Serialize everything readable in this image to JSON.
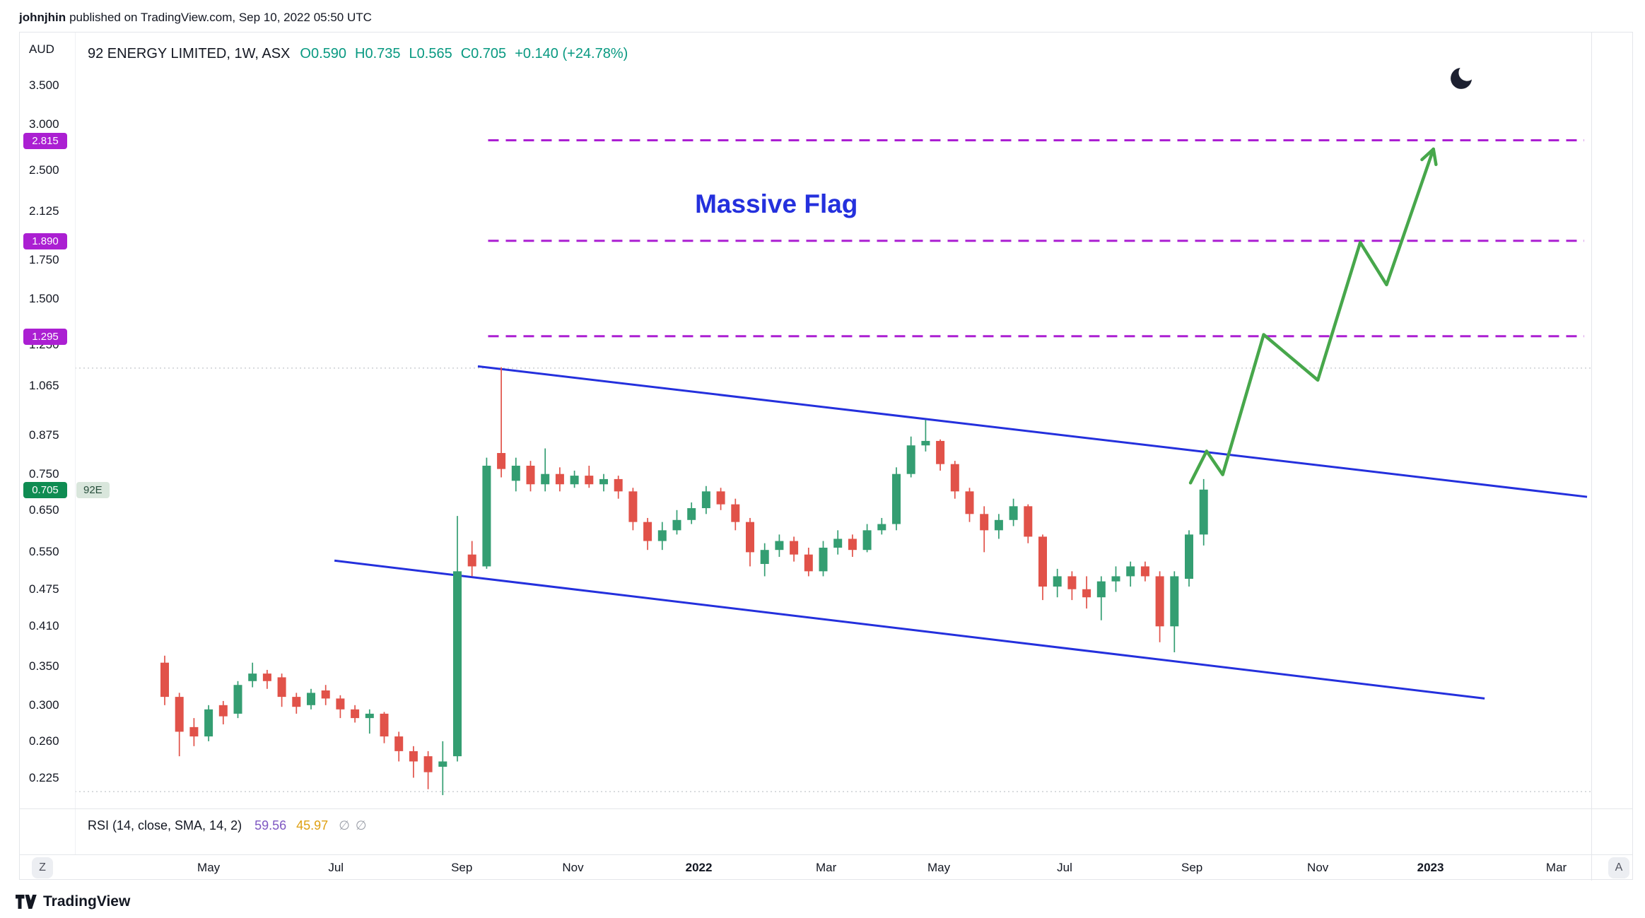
{
  "header": {
    "author": "johnjhin",
    "publish_text": "published on TradingView.com, Sep 10, 2022 05:50 UTC"
  },
  "legend": {
    "symbol_title": "92 ENERGY LIMITED, 1W, ASX",
    "ohlc": [
      {
        "label": "O",
        "value": "0.590"
      },
      {
        "label": "H",
        "value": "0.735"
      },
      {
        "label": "L",
        "value": "0.565"
      },
      {
        "label": "C",
        "value": "0.705"
      }
    ],
    "change": "+0.140 (+24.78%)"
  },
  "indicator": {
    "name": "RSI (14, close, SMA, 14, 2)",
    "value": "59.56",
    "ma_value": "45.97",
    "icons": [
      "∅",
      "∅"
    ]
  },
  "buttons": {
    "timezone": "Z",
    "autoscale": "A"
  },
  "footer": {
    "brand": "TradingView"
  },
  "chart_data": {
    "type": "candlestick",
    "title": "92 ENERGY LIMITED, 1W, ASX",
    "interval": "1W",
    "currency": "AUD",
    "scale": "logarithmic",
    "price_ticks": [
      3.5,
      3.0,
      2.5,
      2.125,
      1.75,
      1.5,
      1.25,
      1.065,
      0.875,
      0.75,
      0.65,
      0.55,
      0.475,
      0.41,
      0.35,
      0.3,
      0.26,
      0.225
    ],
    "time_ticks": [
      {
        "i": 3.0,
        "label": "May"
      },
      {
        "i": 11.7,
        "label": "Jul"
      },
      {
        "i": 20.3,
        "label": "Sep"
      },
      {
        "i": 27.9,
        "label": "Nov"
      },
      {
        "i": 36.5,
        "label": "2022",
        "bold": true
      },
      {
        "i": 45.2,
        "label": "Mar"
      },
      {
        "i": 52.9,
        "label": "May"
      },
      {
        "i": 61.5,
        "label": "Jul"
      },
      {
        "i": 70.2,
        "label": "Sep"
      },
      {
        "i": 78.8,
        "label": "Nov"
      },
      {
        "i": 86.5,
        "label": "2023",
        "bold": true
      },
      {
        "i": 95.1,
        "label": "Mar"
      }
    ],
    "candles": [
      [
        0.355,
        0.365,
        0.3,
        0.31
      ],
      [
        0.31,
        0.315,
        0.245,
        0.27
      ],
      [
        0.275,
        0.285,
        0.255,
        0.265
      ],
      [
        0.265,
        0.3,
        0.26,
        0.295
      ],
      [
        0.3,
        0.305,
        0.278,
        0.287
      ],
      [
        0.29,
        0.33,
        0.285,
        0.325
      ],
      [
        0.33,
        0.355,
        0.322,
        0.34
      ],
      [
        0.34,
        0.345,
        0.32,
        0.33
      ],
      [
        0.335,
        0.34,
        0.298,
        0.31
      ],
      [
        0.31,
        0.315,
        0.29,
        0.298
      ],
      [
        0.3,
        0.32,
        0.295,
        0.315
      ],
      [
        0.318,
        0.325,
        0.3,
        0.308
      ],
      [
        0.308,
        0.312,
        0.285,
        0.295
      ],
      [
        0.295,
        0.3,
        0.28,
        0.285
      ],
      [
        0.285,
        0.295,
        0.268,
        0.29
      ],
      [
        0.29,
        0.292,
        0.258,
        0.265
      ],
      [
        0.265,
        0.27,
        0.24,
        0.25
      ],
      [
        0.25,
        0.255,
        0.225,
        0.24
      ],
      [
        0.245,
        0.25,
        0.215,
        0.23
      ],
      [
        0.235,
        0.26,
        0.21,
        0.24
      ],
      [
        0.245,
        0.635,
        0.24,
        0.51
      ],
      [
        0.545,
        0.575,
        0.5,
        0.52
      ],
      [
        0.52,
        0.8,
        0.515,
        0.775
      ],
      [
        0.815,
        1.145,
        0.74,
        0.765
      ],
      [
        0.73,
        0.8,
        0.7,
        0.775
      ],
      [
        0.775,
        0.79,
        0.7,
        0.72
      ],
      [
        0.72,
        0.83,
        0.7,
        0.75
      ],
      [
        0.75,
        0.77,
        0.7,
        0.72
      ],
      [
        0.72,
        0.76,
        0.71,
        0.745
      ],
      [
        0.745,
        0.775,
        0.71,
        0.72
      ],
      [
        0.72,
        0.75,
        0.7,
        0.735
      ],
      [
        0.735,
        0.745,
        0.68,
        0.7
      ],
      [
        0.7,
        0.71,
        0.6,
        0.62
      ],
      [
        0.62,
        0.63,
        0.555,
        0.575
      ],
      [
        0.575,
        0.62,
        0.555,
        0.6
      ],
      [
        0.6,
        0.65,
        0.59,
        0.625
      ],
      [
        0.625,
        0.67,
        0.615,
        0.655
      ],
      [
        0.655,
        0.715,
        0.64,
        0.7
      ],
      [
        0.7,
        0.71,
        0.65,
        0.665
      ],
      [
        0.665,
        0.68,
        0.6,
        0.62
      ],
      [
        0.62,
        0.63,
        0.52,
        0.55
      ],
      [
        0.525,
        0.57,
        0.5,
        0.555
      ],
      [
        0.555,
        0.59,
        0.54,
        0.575
      ],
      [
        0.575,
        0.585,
        0.53,
        0.545
      ],
      [
        0.545,
        0.56,
        0.5,
        0.51
      ],
      [
        0.51,
        0.575,
        0.5,
        0.56
      ],
      [
        0.56,
        0.6,
        0.545,
        0.58
      ],
      [
        0.58,
        0.59,
        0.54,
        0.555
      ],
      [
        0.555,
        0.615,
        0.55,
        0.6
      ],
      [
        0.6,
        0.63,
        0.59,
        0.615
      ],
      [
        0.615,
        0.77,
        0.6,
        0.75
      ],
      [
        0.75,
        0.87,
        0.74,
        0.84
      ],
      [
        0.84,
        0.93,
        0.82,
        0.855
      ],
      [
        0.855,
        0.86,
        0.76,
        0.78
      ],
      [
        0.78,
        0.79,
        0.68,
        0.7
      ],
      [
        0.7,
        0.71,
        0.62,
        0.64
      ],
      [
        0.64,
        0.66,
        0.55,
        0.6
      ],
      [
        0.6,
        0.64,
        0.58,
        0.625
      ],
      [
        0.625,
        0.68,
        0.61,
        0.66
      ],
      [
        0.66,
        0.665,
        0.57,
        0.585
      ],
      [
        0.585,
        0.59,
        0.455,
        0.48
      ],
      [
        0.48,
        0.515,
        0.46,
        0.5
      ],
      [
        0.5,
        0.51,
        0.455,
        0.475
      ],
      [
        0.475,
        0.5,
        0.44,
        0.46
      ],
      [
        0.46,
        0.5,
        0.42,
        0.49
      ],
      [
        0.49,
        0.52,
        0.47,
        0.5
      ],
      [
        0.5,
        0.53,
        0.48,
        0.52
      ],
      [
        0.52,
        0.53,
        0.49,
        0.5
      ],
      [
        0.5,
        0.51,
        0.385,
        0.41
      ],
      [
        0.41,
        0.51,
        0.37,
        0.5
      ],
      [
        0.495,
        0.6,
        0.48,
        0.59
      ],
      [
        0.59,
        0.735,
        0.565,
        0.705
      ]
    ],
    "ohlc_last": {
      "o": 0.59,
      "h": 0.735,
      "l": 0.565,
      "c": 0.705,
      "change": "+0.140",
      "change_pct": "+24.78%"
    },
    "levels": [
      {
        "price": 2.815,
        "color": "#ab1fd2",
        "dash": "15 10",
        "width": 3,
        "from": 22.1,
        "to": 97.0
      },
      {
        "price": 1.89,
        "color": "#ab1fd2",
        "dash": "15 10",
        "width": 3,
        "from": 22.1,
        "to": 97.0
      },
      {
        "price": 1.295,
        "color": "#ab1fd2",
        "dash": "15 10",
        "width": 3,
        "from": 22.1,
        "to": 97.0
      },
      {
        "price": 1.141,
        "color": "#b4b7bf",
        "dash": "2 4",
        "width": 1,
        "full": true
      },
      {
        "price": 0.213,
        "color": "#b4b7bf",
        "dash": "2 4",
        "width": 1,
        "full": true
      }
    ],
    "axis_badges": [
      2.815,
      1.89,
      1.295
    ],
    "current_price": {
      "price": 0.705,
      "label": "0.705",
      "symbol_label": "92E"
    },
    "trendlines": [
      {
        "i1": 21.4,
        "p1": 1.149,
        "i2": 97.2,
        "p2": 0.685
      },
      {
        "i1": 11.6,
        "p1": 0.532,
        "i2": 90.2,
        "p2": 0.308
      }
    ],
    "projection_arrow": [
      [
        70.1,
        0.724
      ],
      [
        71.2,
        0.821
      ],
      [
        72.3,
        0.748
      ],
      [
        75.1,
        1.303
      ],
      [
        78.8,
        1.088
      ],
      [
        81.7,
        1.878
      ],
      [
        83.5,
        1.588
      ],
      [
        86.7,
        2.718
      ]
    ],
    "annotation": {
      "text": "Massive Flag",
      "i": 41.8,
      "price": 2.185
    },
    "colors": {
      "up": "#349e72",
      "down": "#e15249",
      "trendline": "#2430dd",
      "level": "#ab1fd2",
      "arrow": "#47a74b",
      "dotted": "#b4b7bf",
      "current_badge": "#0f8c52"
    }
  }
}
